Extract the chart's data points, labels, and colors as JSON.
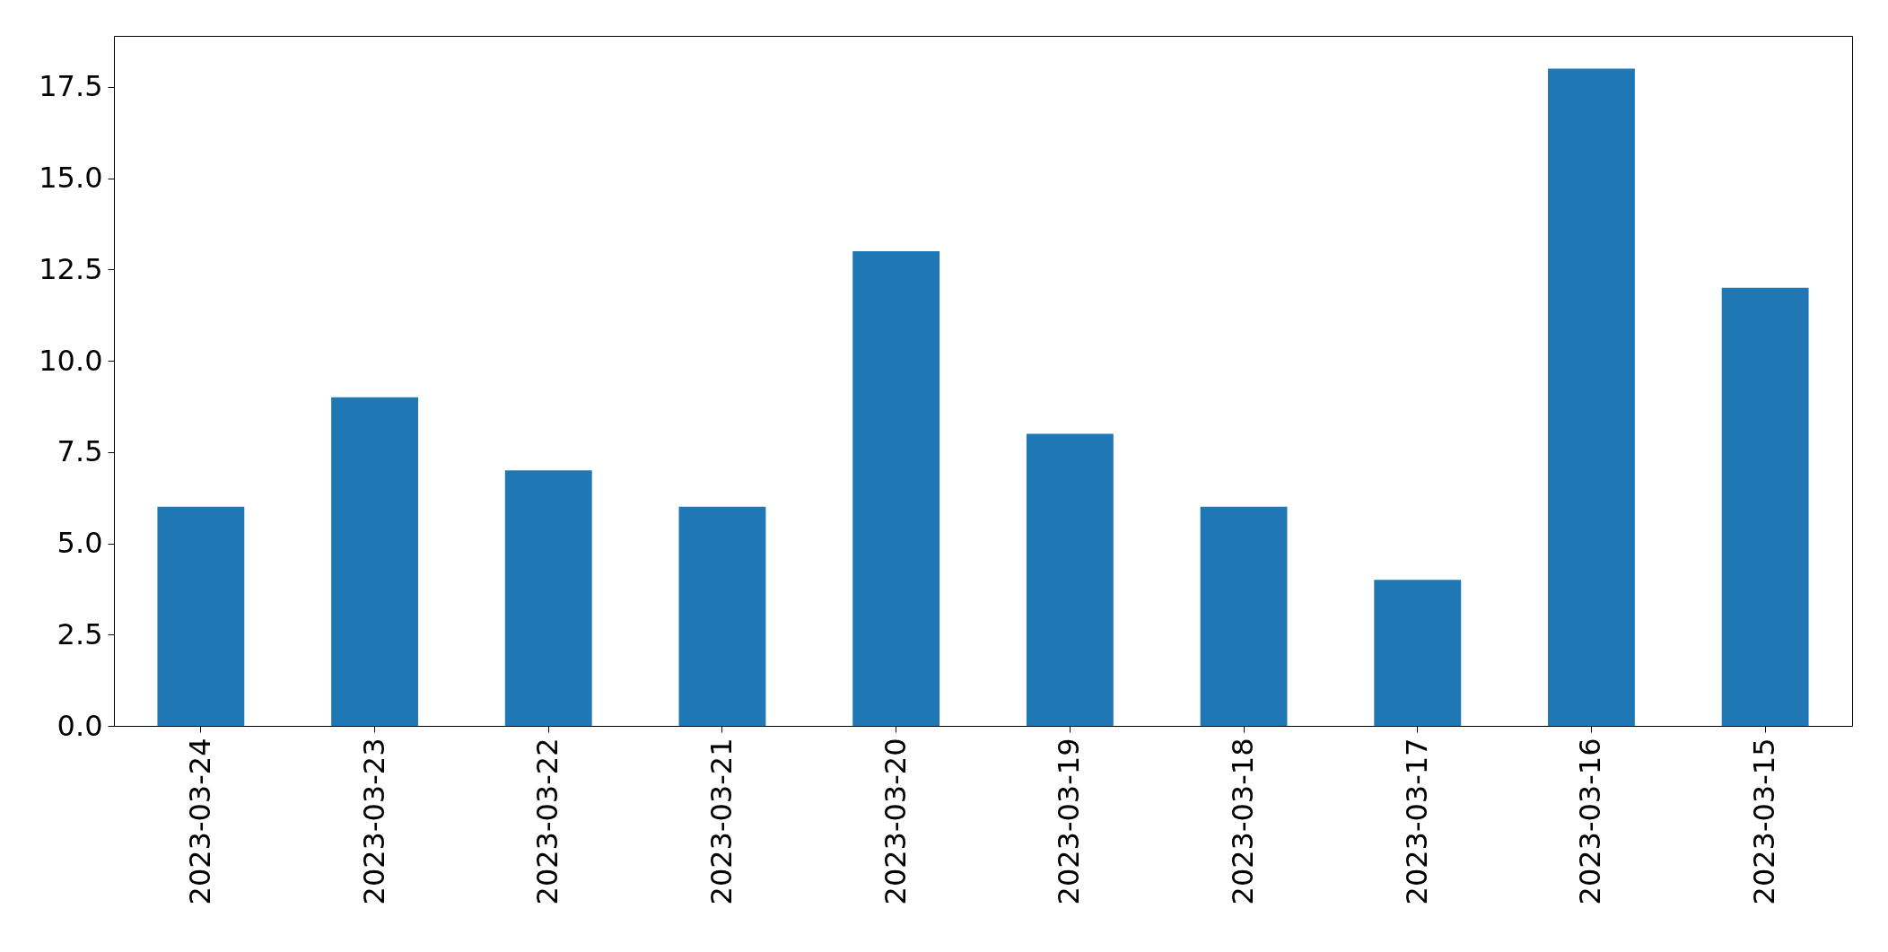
{
  "chart_data": {
    "type": "bar",
    "categories": [
      "2023-03-24",
      "2023-03-23",
      "2023-03-22",
      "2023-03-21",
      "2023-03-20",
      "2023-03-19",
      "2023-03-18",
      "2023-03-17",
      "2023-03-16",
      "2023-03-15"
    ],
    "values": [
      6,
      9,
      7,
      6,
      13,
      8,
      6,
      4,
      18,
      12
    ],
    "color": "#1f77b4",
    "ylim": [
      0,
      18.9
    ],
    "yticks": [
      {
        "value": 0,
        "label": "0.0"
      },
      {
        "value": 2.5,
        "label": "2.5"
      },
      {
        "value": 5,
        "label": "5.0"
      },
      {
        "value": 7.5,
        "label": "7.5"
      },
      {
        "value": 10,
        "label": "10.0"
      },
      {
        "value": 12.5,
        "label": "12.5"
      },
      {
        "value": 15,
        "label": "15.0"
      },
      {
        "value": 17.5,
        "label": "17.5"
      }
    ],
    "grid": false
  }
}
